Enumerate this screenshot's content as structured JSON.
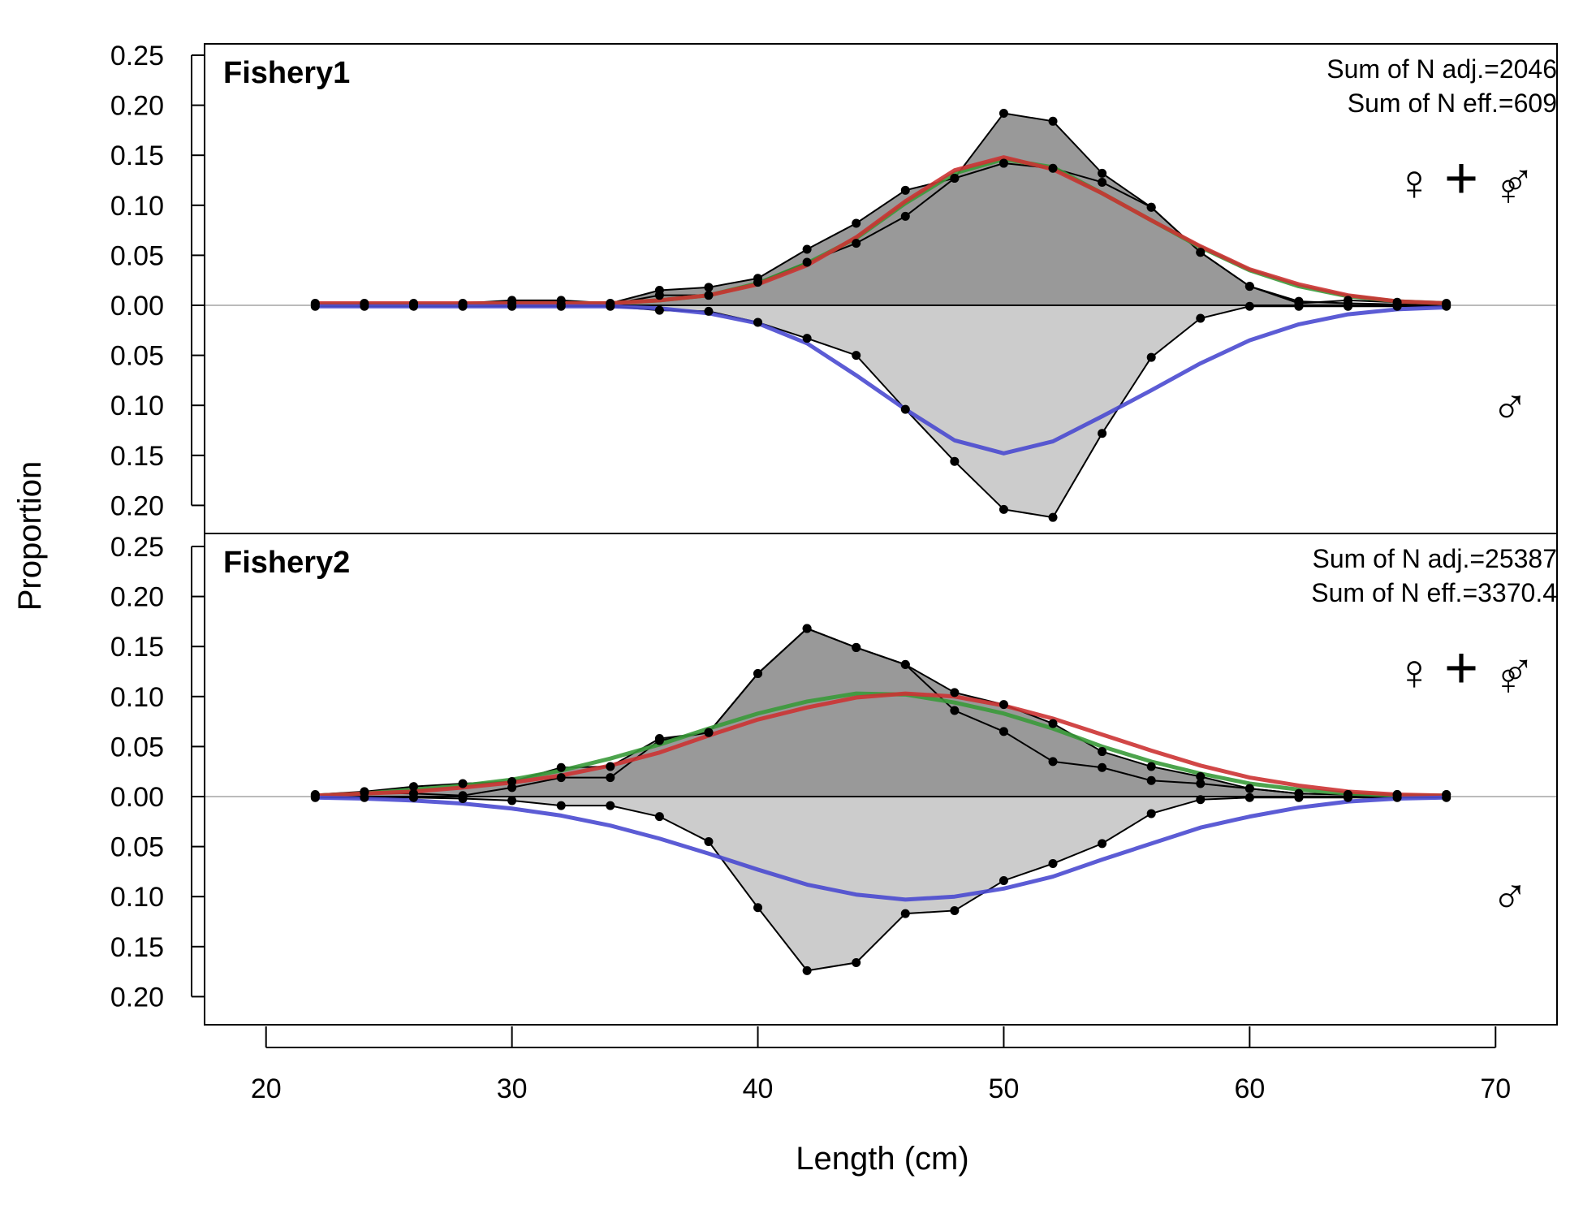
{
  "chart_data": {
    "type": "area",
    "xlabel": "Length (cm)",
    "ylabel": "Proportion",
    "xlim": [
      17.5,
      72.5
    ],
    "x_ticks": [
      20,
      30,
      40,
      50,
      60,
      70
    ],
    "y_ticks_upper": [
      "0.25",
      "0.20",
      "0.15",
      "0.10",
      "0.05",
      "0.00"
    ],
    "y_ticks_lower": [
      "0.05",
      "0.10",
      "0.15",
      "0.20"
    ],
    "colors": {
      "observed_female": "#999999",
      "observed_male": "#cccccc",
      "expected_female": "#3a9a3a",
      "expected_combined": "#cc3333",
      "expected_male": "#4a4ad0",
      "symbol_female": "#228b22",
      "symbol_male": "#2424c8",
      "zero_line": "#bbbbbb"
    },
    "symbols": {
      "female": "♀",
      "plus": "+",
      "male": "♂"
    },
    "panels": [
      {
        "title": "Fishery1",
        "stat_adj": "Sum of N adj.=2046",
        "stat_eff": "Sum of N eff.=609",
        "ylim": [
          -0.23,
          0.26
        ],
        "x": [
          22,
          24,
          26,
          28,
          30,
          32,
          34,
          36,
          38,
          40,
          42,
          44,
          46,
          48,
          50,
          52,
          54,
          56,
          58,
          60,
          62,
          64,
          66,
          68
        ],
        "female_obs_upper": [
          0.002,
          0.002,
          0.002,
          0.002,
          0.005,
          0.005,
          0.002,
          0.015,
          0.018,
          0.027,
          0.056,
          0.082,
          0.115,
          0.127,
          0.192,
          0.184,
          0.132,
          0.098,
          0.053,
          0.019,
          0.004,
          0.002,
          0.001,
          0.001
        ],
        "female_obs_lower": [
          0.001,
          0.001,
          0.001,
          0.001,
          0.002,
          0.001,
          0.001,
          0.01,
          0.01,
          0.023,
          0.043,
          0.062,
          0.089,
          0.127,
          0.142,
          0.137,
          0.123,
          0.098,
          0.053,
          0.019,
          0.002,
          0.005,
          0.003,
          0.002
        ],
        "male_obs": [
          0.001,
          0.001,
          0.001,
          0.001,
          0.001,
          0.001,
          0.001,
          0.005,
          0.006,
          0.017,
          0.033,
          0.05,
          0.104,
          0.156,
          0.204,
          0.212,
          0.128,
          0.052,
          0.013,
          0.001,
          0.001,
          0.001,
          0.001,
          0.001
        ],
        "female_exp": [
          0.001,
          0.001,
          0.001,
          0.001,
          0.002,
          0.002,
          0.002,
          0.005,
          0.01,
          0.022,
          0.042,
          0.067,
          0.102,
          0.132,
          0.146,
          0.138,
          0.112,
          0.085,
          0.058,
          0.035,
          0.019,
          0.009,
          0.004,
          0.002
        ],
        "combined_exp": [
          0.002,
          0.002,
          0.002,
          0.002,
          0.002,
          0.002,
          0.002,
          0.005,
          0.01,
          0.021,
          0.04,
          0.068,
          0.104,
          0.135,
          0.148,
          0.136,
          0.112,
          0.085,
          0.059,
          0.036,
          0.021,
          0.01,
          0.004,
          0.002
        ],
        "male_exp": [
          0.001,
          0.001,
          0.001,
          0.001,
          0.001,
          0.001,
          0.001,
          0.003,
          0.008,
          0.018,
          0.038,
          0.07,
          0.104,
          0.135,
          0.148,
          0.136,
          0.111,
          0.085,
          0.058,
          0.035,
          0.019,
          0.009,
          0.004,
          0.002
        ]
      },
      {
        "title": "Fishery2",
        "stat_adj": "Sum of N adj.=25387",
        "stat_eff": "Sum of N eff.=3370.4",
        "ylim": [
          -0.23,
          0.26
        ],
        "x": [
          22,
          24,
          26,
          28,
          30,
          32,
          34,
          36,
          38,
          40,
          42,
          44,
          46,
          48,
          50,
          52,
          54,
          56,
          58,
          60,
          62,
          64,
          66,
          68
        ],
        "female_obs_upper": [
          0.002,
          0.005,
          0.01,
          0.013,
          0.015,
          0.029,
          0.03,
          0.058,
          0.064,
          0.123,
          0.168,
          0.149,
          0.132,
          0.104,
          0.092,
          0.073,
          0.045,
          0.03,
          0.02,
          0.008,
          0.003,
          0.002,
          0.002,
          0.002
        ],
        "female_obs_lower": [
          0.001,
          0.004,
          0.003,
          0.001,
          0.009,
          0.019,
          0.019,
          0.056,
          0.064,
          0.123,
          0.168,
          0.149,
          0.132,
          0.086,
          0.065,
          0.035,
          0.029,
          0.016,
          0.013,
          0.008,
          0.003,
          0.002,
          0.002,
          0.002
        ],
        "male_obs": [
          0.001,
          0.001,
          0.001,
          0.002,
          0.004,
          0.009,
          0.009,
          0.02,
          0.045,
          0.111,
          0.174,
          0.166,
          0.117,
          0.114,
          0.084,
          0.067,
          0.047,
          0.017,
          0.003,
          0.001,
          0.001,
          0.001,
          0.001,
          0.001
        ],
        "female_exp": [
          0.001,
          0.003,
          0.007,
          0.011,
          0.017,
          0.026,
          0.038,
          0.052,
          0.068,
          0.083,
          0.095,
          0.103,
          0.102,
          0.094,
          0.083,
          0.068,
          0.05,
          0.035,
          0.023,
          0.013,
          0.007,
          0.003,
          0.001,
          0.001
        ],
        "combined_exp": [
          0.001,
          0.003,
          0.005,
          0.009,
          0.014,
          0.021,
          0.031,
          0.044,
          0.061,
          0.077,
          0.089,
          0.099,
          0.103,
          0.1,
          0.091,
          0.078,
          0.062,
          0.046,
          0.031,
          0.019,
          0.011,
          0.005,
          0.002,
          0.001
        ],
        "male_exp": [
          0.001,
          0.002,
          0.004,
          0.007,
          0.012,
          0.019,
          0.029,
          0.042,
          0.057,
          0.073,
          0.088,
          0.098,
          0.103,
          0.1,
          0.092,
          0.08,
          0.063,
          0.047,
          0.031,
          0.02,
          0.011,
          0.005,
          0.002,
          0.001
        ]
      }
    ]
  }
}
